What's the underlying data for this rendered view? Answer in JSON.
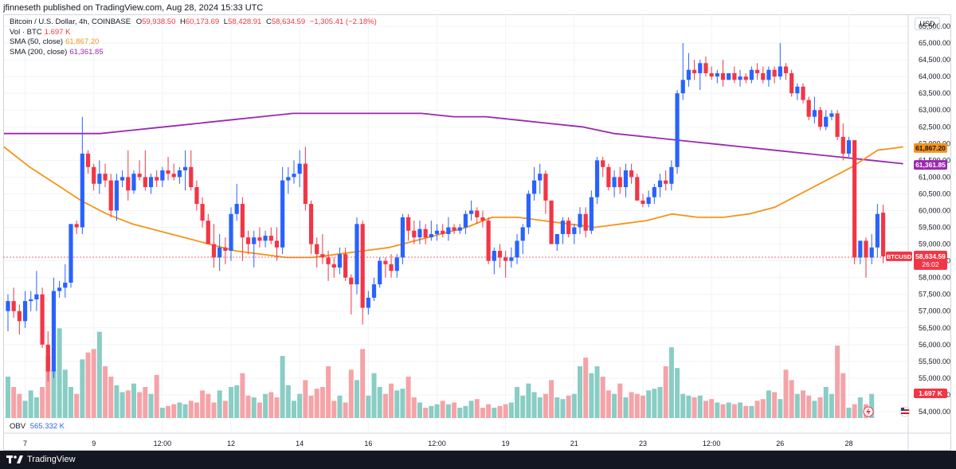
{
  "header": {
    "publisher_line": "jfinneseth published on TradingView.com, Aug 28, 2024 15:33 UTC"
  },
  "legend": {
    "symbol": "Bitcoin / U.S. Dollar, 4h, COINBASE",
    "ohlc": {
      "O": "59,938.50",
      "H": "60,173.69",
      "L": "58,428.91",
      "C": "58,634.59",
      "change": "−1,305.41 (−2.18%)"
    },
    "vol_label": "Vol · BTC",
    "vol_value": "1.697 K",
    "sma50_label": "SMA (50, close)",
    "sma50_value": "61,867.20",
    "sma200_label": "SMA (200, close)",
    "sma200_value": "61,361.85"
  },
  "obv": {
    "label": "OBV",
    "value": "565.332 K"
  },
  "currency": "USD",
  "footer": {
    "brand": "TradingView"
  },
  "colors": {
    "up": "#2962ff",
    "down": "#f23645",
    "sma50": "#f7931a",
    "sma200": "#9c27b0",
    "vol_up": "#89cdc4",
    "vol_down": "#f5a3a8"
  },
  "badges": {
    "symbol": "BTCUSD",
    "price": "58,634.59",
    "countdown": "26:02",
    "vol": "1.697 K"
  },
  "chart_data": {
    "type": "candlestick",
    "ylim": [
      53500,
      65800
    ],
    "y_ticks": [
      54000,
      54500,
      55000,
      55500,
      56000,
      56500,
      57000,
      57500,
      58000,
      58500,
      59000,
      59500,
      60000,
      60500,
      61000,
      61500,
      62000,
      62500,
      63000,
      63500,
      64000,
      64500,
      65000,
      65500
    ],
    "x_tick_labels": [
      {
        "label": "7",
        "bar": 3
      },
      {
        "label": "9",
        "bar": 15
      },
      {
        "label": "12:00",
        "bar": 27
      },
      {
        "label": "12",
        "bar": 39
      },
      {
        "label": "14",
        "bar": 51
      },
      {
        "label": "16",
        "bar": 63
      },
      {
        "label": "12:00",
        "bar": 75
      },
      {
        "label": "19",
        "bar": 87
      },
      {
        "label": "21",
        "bar": 99
      },
      {
        "label": "23",
        "bar": 111
      },
      {
        "label": "12:00",
        "bar": 123
      },
      {
        "label": "26",
        "bar": 135
      },
      {
        "label": "28",
        "bar": 147
      }
    ],
    "candles": [
      [
        57000,
        57500,
        56400,
        57300
      ],
      [
        57300,
        57700,
        56800,
        57000
      ],
      [
        57000,
        57200,
        56300,
        56700
      ],
      [
        56700,
        57600,
        56500,
        57300
      ],
      [
        57300,
        57600,
        57000,
        57350
      ],
      [
        57350,
        58200,
        57000,
        57500
      ],
      [
        57500,
        57700,
        55900,
        56000
      ],
      [
        56000,
        56400,
        54900,
        55200
      ],
      [
        55200,
        58000,
        55000,
        57600
      ],
      [
        57600,
        57900,
        57400,
        57700
      ],
      [
        57700,
        58400,
        57400,
        57850
      ],
      [
        57850,
        59500,
        57700,
        59600
      ],
      [
        59600,
        59700,
        59300,
        59500
      ],
      [
        59500,
        62800,
        59300,
        61700
      ],
      [
        61700,
        61800,
        61100,
        61300
      ],
      [
        61300,
        61400,
        60600,
        60800
      ],
      [
        60800,
        61500,
        60500,
        61100
      ],
      [
        61100,
        61400,
        60700,
        60900
      ],
      [
        60900,
        61100,
        59800,
        60000
      ],
      [
        60000,
        61100,
        59700,
        60900
      ],
      [
        60900,
        61200,
        60700,
        61000
      ],
      [
        61000,
        61800,
        60300,
        60600
      ],
      [
        60600,
        61200,
        60500,
        61100
      ],
      [
        61100,
        61500,
        60900,
        61000
      ],
      [
        61000,
        61800,
        60600,
        60700
      ],
      [
        60700,
        61100,
        60500,
        61000
      ],
      [
        61000,
        61200,
        60700,
        60900
      ],
      [
        60900,
        61300,
        60700,
        61200
      ],
      [
        61200,
        61600,
        60900,
        61100
      ],
      [
        61100,
        61400,
        60900,
        61000
      ],
      [
        61000,
        61300,
        60800,
        61200
      ],
      [
        61200,
        61800,
        60600,
        61300
      ],
      [
        61300,
        61800,
        60600,
        60700
      ],
      [
        60700,
        60900,
        60000,
        60200
      ],
      [
        60200,
        60400,
        59500,
        59700
      ],
      [
        59700,
        59900,
        59100,
        59000
      ],
      [
        59000,
        59600,
        58300,
        58600
      ],
      [
        58600,
        59300,
        58200,
        58900
      ],
      [
        58900,
        59200,
        58400,
        58800
      ],
      [
        58800,
        60100,
        58500,
        59900
      ],
      [
        59900,
        60800,
        59700,
        60200
      ],
      [
        60200,
        60400,
        58500,
        59200
      ],
      [
        59200,
        59400,
        58700,
        59000
      ],
      [
        59000,
        59400,
        58300,
        59200
      ],
      [
        59200,
        59500,
        58900,
        59100
      ],
      [
        59100,
        59400,
        58900,
        59250
      ],
      [
        59250,
        59500,
        59000,
        59100
      ],
      [
        59100,
        59500,
        58500,
        58900
      ],
      [
        58900,
        61300,
        58700,
        60900
      ],
      [
        60900,
        61300,
        60500,
        61000
      ],
      [
        61000,
        61500,
        60800,
        61100
      ],
      [
        61100,
        61800,
        60700,
        61400
      ],
      [
        61400,
        61900,
        60000,
        60200
      ],
      [
        60200,
        60300,
        58700,
        59000
      ],
      [
        59000,
        59200,
        58300,
        58700
      ],
      [
        58700,
        59300,
        58400,
        58600
      ],
      [
        58600,
        58800,
        57900,
        58400
      ],
      [
        58400,
        58600,
        58000,
        58300
      ],
      [
        58300,
        58900,
        58100,
        58700
      ],
      [
        58700,
        58900,
        57900,
        58000
      ],
      [
        58000,
        58100,
        56900,
        57800
      ],
      [
        57800,
        59800,
        57500,
        59600
      ],
      [
        59600,
        59700,
        56600,
        57100
      ],
      [
        57100,
        57600,
        56900,
        57400
      ],
      [
        57400,
        58000,
        57300,
        57800
      ],
      [
        57800,
        58600,
        57700,
        58500
      ],
      [
        58500,
        58600,
        58000,
        58400
      ],
      [
        58400,
        58700,
        58000,
        58200
      ],
      [
        58200,
        58700,
        58000,
        58600
      ],
      [
        58600,
        59900,
        58400,
        59800
      ],
      [
        59800,
        59900,
        59100,
        59400
      ],
      [
        59400,
        59700,
        59000,
        59200
      ],
      [
        59200,
        59700,
        59000,
        59450
      ],
      [
        59450,
        59600,
        59000,
        59200
      ],
      [
        59200,
        59700,
        59100,
        59300
      ],
      [
        59300,
        59600,
        59100,
        59400
      ],
      [
        59400,
        59600,
        59200,
        59300
      ],
      [
        59300,
        59800,
        59100,
        59500
      ],
      [
        59500,
        59600,
        59300,
        59400
      ],
      [
        59400,
        59600,
        59300,
        59500
      ],
      [
        59500,
        60000,
        59300,
        59900
      ],
      [
        59900,
        60300,
        59700,
        60000
      ],
      [
        60000,
        60100,
        59600,
        59800
      ],
      [
        59800,
        60000,
        59500,
        59700
      ],
      [
        59700,
        59800,
        58400,
        58500
      ],
      [
        58500,
        58900,
        58100,
        58800
      ],
      [
        58800,
        59000,
        58300,
        58600
      ],
      [
        58600,
        58800,
        58000,
        58500
      ],
      [
        58500,
        58900,
        58300,
        58600
      ],
      [
        58600,
        59300,
        58400,
        59100
      ],
      [
        59100,
        59600,
        58700,
        59500
      ],
      [
        59500,
        60600,
        59300,
        60500
      ],
      [
        60500,
        61300,
        60300,
        60900
      ],
      [
        60900,
        61400,
        60500,
        61100
      ],
      [
        61100,
        61200,
        59900,
        60300
      ],
      [
        60300,
        60300,
        59000,
        59000
      ],
      [
        59000,
        59300,
        58800,
        59300
      ],
      [
        59300,
        59800,
        59000,
        59700
      ],
      [
        59700,
        59800,
        59200,
        59300
      ],
      [
        59300,
        59600,
        59000,
        59500
      ],
      [
        59500,
        60100,
        59300,
        59900
      ],
      [
        59900,
        60100,
        59200,
        59400
      ],
      [
        59400,
        60600,
        59300,
        60400
      ],
      [
        60400,
        61600,
        60200,
        61500
      ],
      [
        61500,
        61600,
        61000,
        61300
      ],
      [
        61300,
        61400,
        60600,
        60700
      ],
      [
        60700,
        61200,
        60400,
        61000
      ],
      [
        61000,
        61300,
        60500,
        60700
      ],
      [
        60700,
        61400,
        60400,
        61200
      ],
      [
        61200,
        61400,
        60800,
        61000
      ],
      [
        61000,
        61100,
        60300,
        60300
      ],
      [
        60300,
        60500,
        60100,
        60200
      ],
      [
        60200,
        60600,
        60100,
        60400
      ],
      [
        60400,
        60800,
        60200,
        60700
      ],
      [
        60700,
        61100,
        60400,
        60900
      ],
      [
        60900,
        61200,
        60600,
        60800
      ],
      [
        60800,
        61500,
        60600,
        61300
      ],
      [
        61300,
        63600,
        61100,
        63500
      ],
      [
        63500,
        65000,
        63300,
        63900
      ],
      [
        63900,
        64700,
        63700,
        64200
      ],
      [
        64200,
        64500,
        63900,
        64100
      ],
      [
        64100,
        64500,
        63600,
        64400
      ],
      [
        64400,
        64600,
        64000,
        64100
      ],
      [
        64100,
        64300,
        63900,
        64000
      ],
      [
        64000,
        64200,
        63800,
        64100
      ],
      [
        64100,
        64500,
        63700,
        63900
      ],
      [
        63900,
        64100,
        63900,
        64100
      ],
      [
        64100,
        64300,
        63800,
        63900
      ],
      [
        63900,
        64200,
        63700,
        64000
      ],
      [
        64000,
        64100,
        63800,
        63900
      ],
      [
        63900,
        64300,
        63800,
        64200
      ],
      [
        64200,
        64400,
        63900,
        64100
      ],
      [
        64100,
        64300,
        63800,
        63900
      ],
      [
        63900,
        64300,
        63700,
        64200
      ],
      [
        64200,
        64300,
        63800,
        64000
      ],
      [
        64000,
        65000,
        63900,
        64300
      ],
      [
        64300,
        64400,
        63900,
        64100
      ],
      [
        64100,
        64200,
        63400,
        63500
      ],
      [
        63500,
        63800,
        63300,
        63700
      ],
      [
        63700,
        63800,
        63200,
        63300
      ],
      [
        63300,
        63400,
        62700,
        62800
      ],
      [
        62800,
        63400,
        62600,
        63000
      ],
      [
        63000,
        63100,
        62400,
        62500
      ],
      [
        62500,
        63000,
        62400,
        62800
      ],
      [
        62800,
        63000,
        62700,
        62900
      ],
      [
        62900,
        63000,
        62100,
        62200
      ],
      [
        62200,
        62600,
        61500,
        61700
      ],
      [
        61700,
        62200,
        61600,
        62100
      ],
      [
        62100,
        62100,
        58400,
        58600
      ],
      [
        58600,
        59100,
        58400,
        59100
      ],
      [
        59100,
        59200,
        58000,
        58600
      ],
      [
        58600,
        59300,
        58400,
        58900
      ],
      [
        58900,
        60200,
        58600,
        59900
      ],
      [
        59938,
        60174,
        58429,
        58635
      ]
    ],
    "sma50": [
      61900,
      61300,
      60800,
      60300,
      59900,
      59600,
      59400,
      59200,
      59000,
      58800,
      58700,
      58600,
      58600,
      58700,
      58800,
      58900,
      59100,
      59300,
      59500,
      59800,
      59800,
      59700,
      59600,
      59500,
      59600,
      59700,
      59900,
      59800,
      59800,
      59900,
      60100,
      60500,
      60900,
      61300,
      61800,
      61900
    ],
    "sma200": [
      62300,
      62300,
      62300,
      62300,
      62400,
      62500,
      62600,
      62700,
      62800,
      62900,
      62900,
      62900,
      62900,
      62900,
      62800,
      62800,
      62700,
      62600,
      62500,
      62300,
      62200,
      62100,
      62000,
      61900,
      61800,
      61700,
      61600,
      61500,
      61400
    ],
    "volume_scale_max": 3000,
    "volume": [
      1200,
      900,
      700,
      500,
      800,
      600,
      900,
      1800,
      1400,
      2600,
      1400,
      900,
      700,
      1700,
      1900,
      2000,
      2500,
      1500,
      1200,
      950,
      750,
      800,
      1000,
      750,
      900,
      700,
      1250,
      300,
      350,
      400,
      450,
      400,
      500,
      450,
      800,
      700,
      450,
      800,
      500,
      900,
      950,
      1300,
      650,
      600,
      450,
      700,
      750,
      600,
      1800,
      950,
      500,
      700,
      1100,
      650,
      850,
      900,
      1500,
      500,
      650,
      450,
      1400,
      1100,
      2000,
      650,
      1300,
      900,
      700,
      1000,
      800,
      850,
      1200,
      600,
      450,
      300,
      350,
      400,
      500,
      400,
      450,
      300,
      350,
      500,
      550,
      300,
      400,
      300,
      350,
      400,
      450,
      900,
      650,
      1000,
      750,
      600,
      700,
      1100,
      600,
      550,
      650,
      700,
      1500,
      1750,
      1300,
      1500,
      1200,
      800,
      700,
      1000,
      600,
      750,
      700,
      650,
      800,
      850,
      900,
      1500,
      2050,
      1450,
      700,
      650,
      600,
      650,
      500,
      550,
      450,
      400,
      450,
      400,
      450,
      350,
      350,
      500,
      550,
      800,
      750,
      550,
      1400,
      1100,
      700,
      800,
      650,
      500,
      600,
      900,
      700,
      2100,
      1300,
      300,
      400,
      600,
      400,
      700
    ]
  }
}
